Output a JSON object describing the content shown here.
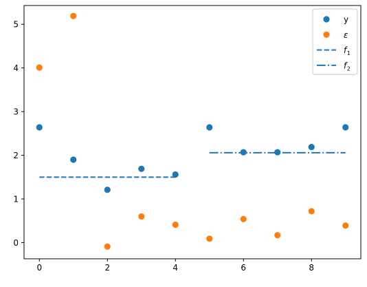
{
  "chart_data": {
    "type": "scatter",
    "title": "",
    "xlabel": "",
    "ylabel": "",
    "xlim": [
      -0.45,
      9.45
    ],
    "ylim": [
      -0.37,
      5.43
    ],
    "xticks": [
      0,
      2,
      4,
      6,
      8
    ],
    "yticks": [
      0,
      1,
      2,
      3,
      4,
      5
    ],
    "grid": false,
    "legend_position": "upper right",
    "series": [
      {
        "name": "y",
        "kind": "scatter",
        "color": "#1f77b4",
        "x": [
          0,
          1,
          2,
          3,
          4,
          5,
          6,
          7,
          8,
          9
        ],
        "y": [
          2.64,
          1.9,
          1.21,
          1.69,
          1.56,
          2.64,
          2.07,
          2.07,
          2.19,
          2.64
        ]
      },
      {
        "name": "ε",
        "kind": "scatter",
        "color": "#ff7f0e",
        "x": [
          0,
          1,
          2,
          3,
          4,
          5,
          6,
          7,
          8,
          9
        ],
        "y": [
          4.01,
          5.19,
          -0.09,
          0.6,
          0.41,
          0.09,
          0.54,
          0.17,
          0.72,
          0.39
        ]
      },
      {
        "name": "f",
        "subscript": "1",
        "kind": "line",
        "dash": "dashed",
        "color": "#1f77b4",
        "x": [
          0,
          4
        ],
        "y": [
          1.5,
          1.5
        ]
      },
      {
        "name": "f",
        "subscript": "2",
        "kind": "line",
        "dash": "dashdot",
        "color": "#1f77b4",
        "x": [
          5,
          9
        ],
        "y": [
          2.06,
          2.06
        ]
      }
    ]
  }
}
